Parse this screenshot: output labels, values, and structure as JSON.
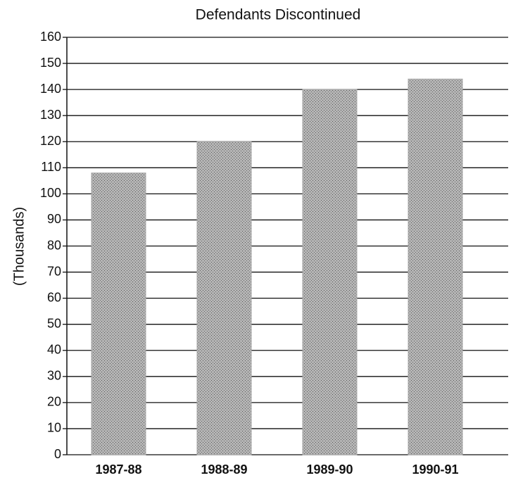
{
  "chart_data": {
    "type": "bar",
    "title": "Defendants Discontinued",
    "y_label": "(Thousands)",
    "categories": [
      "1987-88",
      "1988-89",
      "1989-90",
      "1990-91"
    ],
    "values": [
      108,
      120,
      140,
      144
    ],
    "color": "#a9a9a9",
    "ylim": [
      0,
      160
    ],
    "yticks": [
      0,
      10,
      20,
      30,
      40,
      50,
      60,
      70,
      80,
      90,
      100,
      110,
      120,
      130,
      140,
      150,
      160
    ],
    "grid": true
  }
}
